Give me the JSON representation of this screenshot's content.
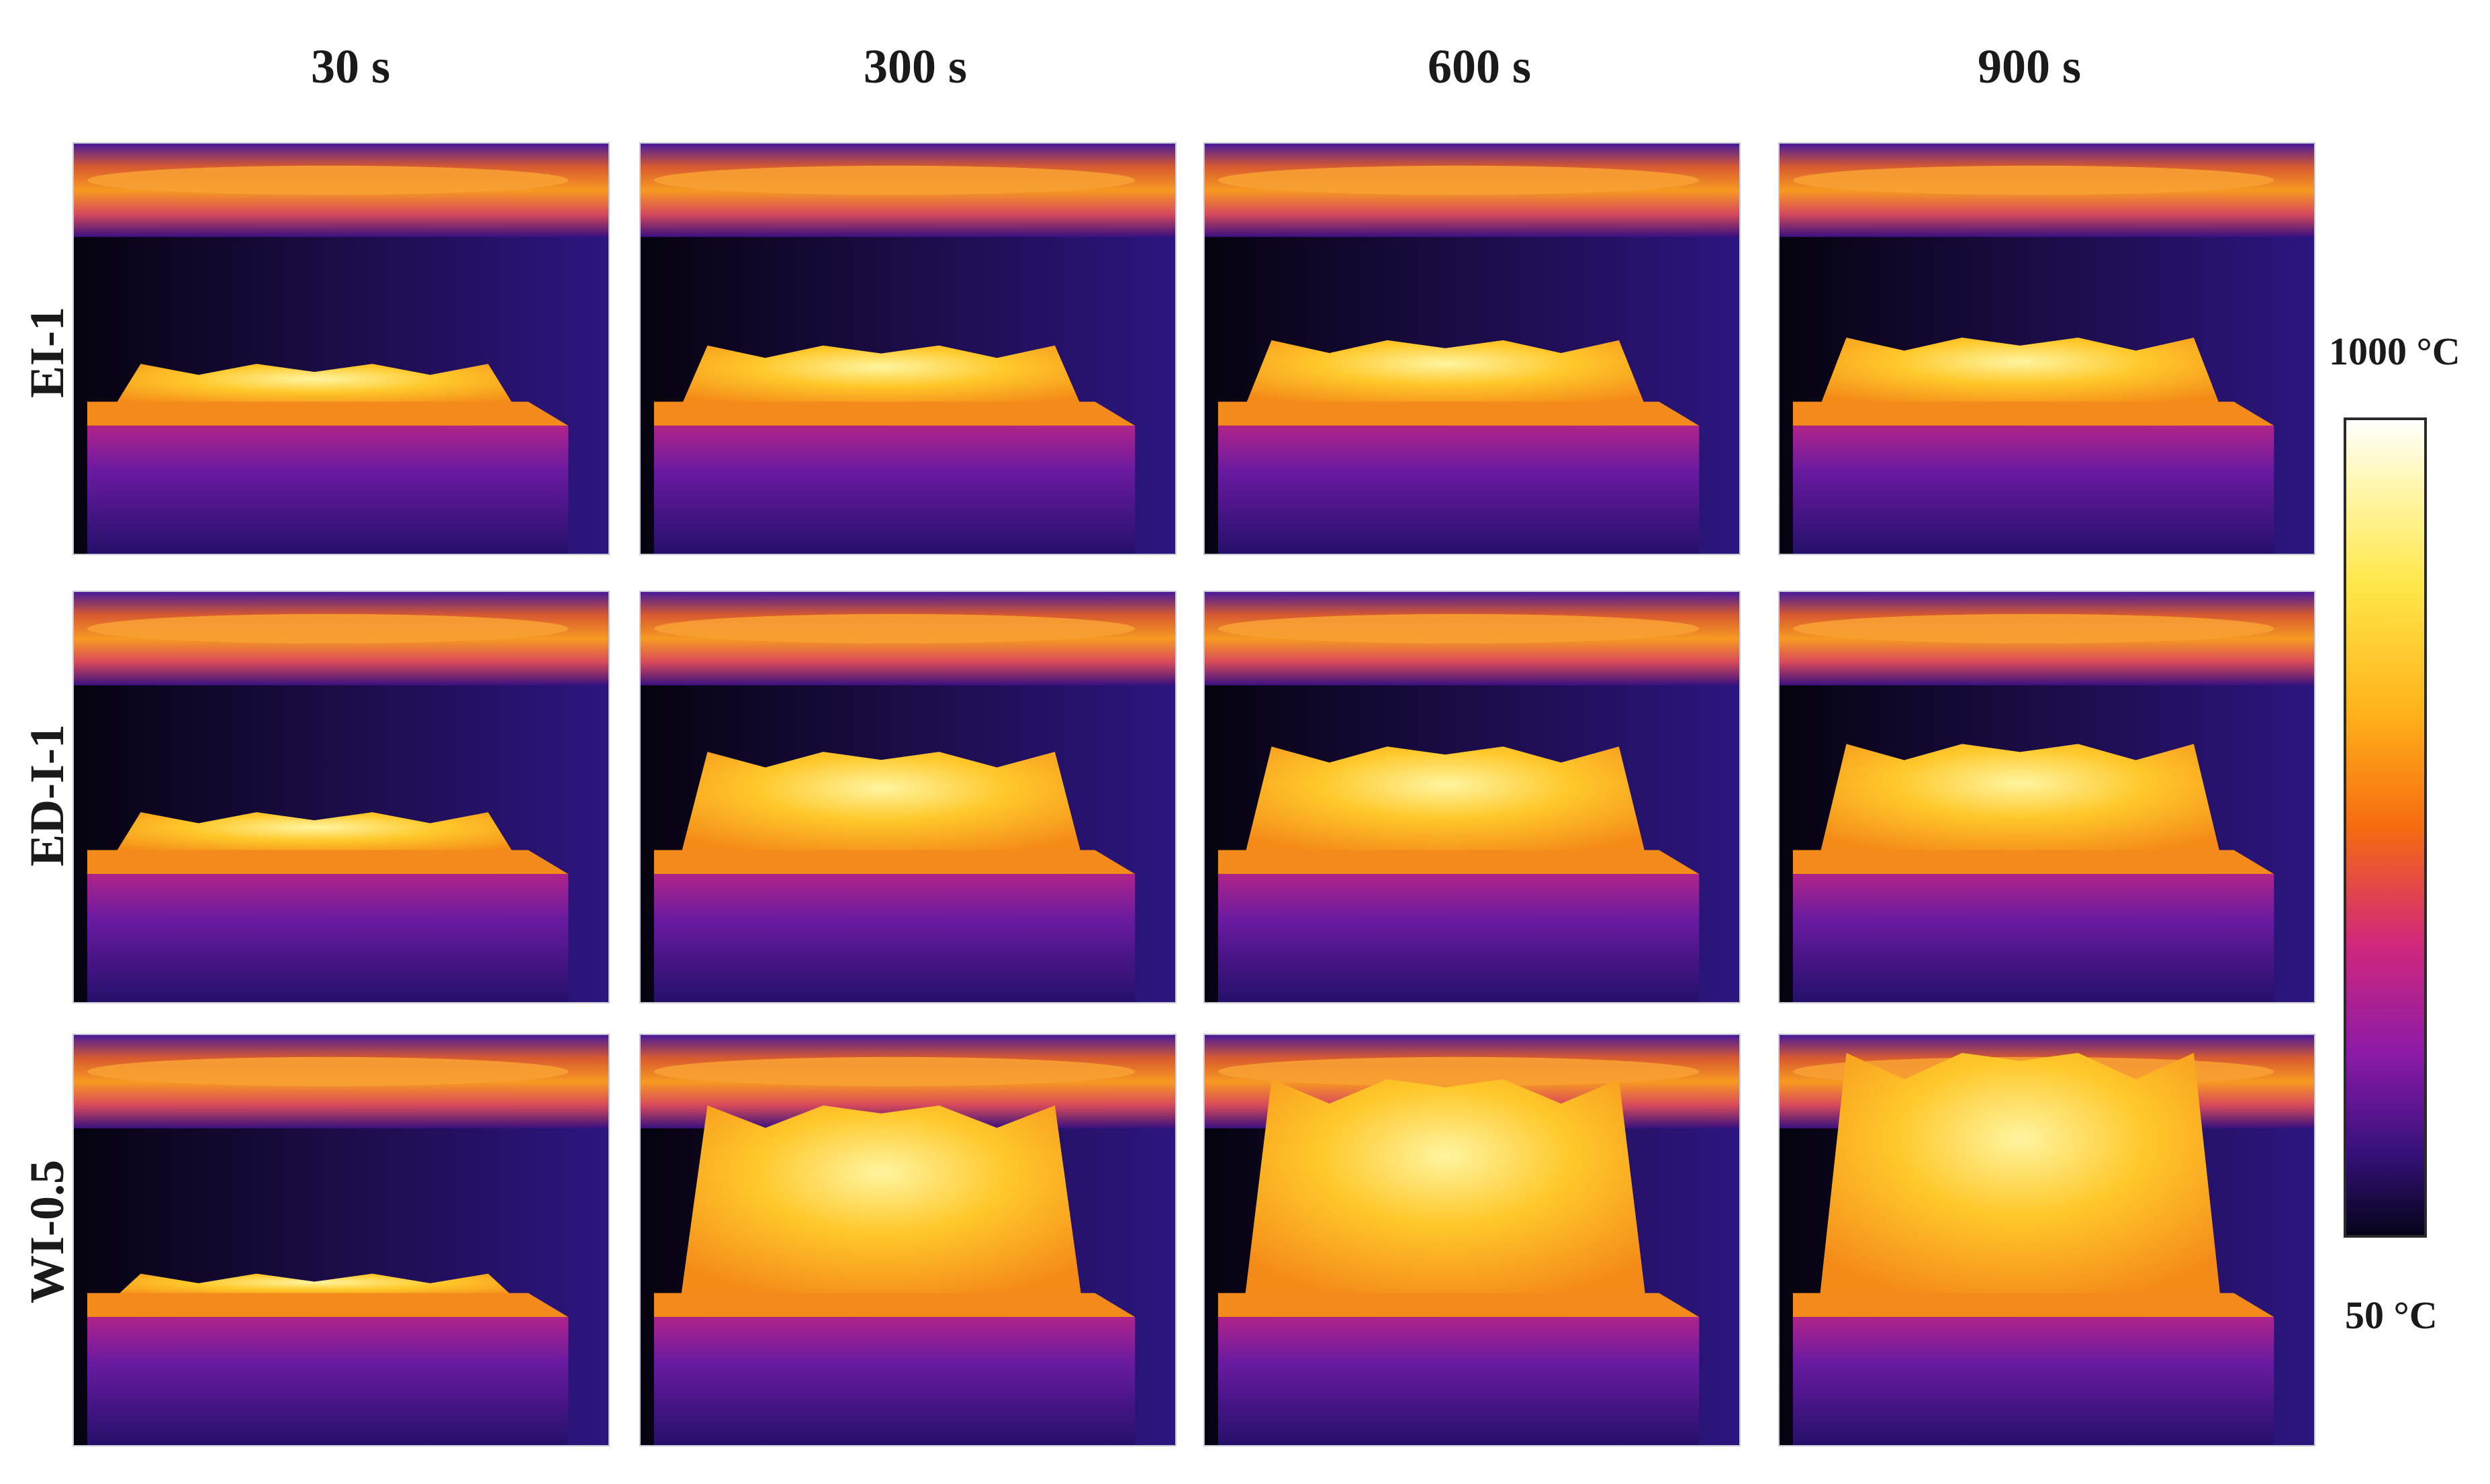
{
  "columns": {
    "c1": "30 s",
    "c2": "300 s",
    "c3": "600 s",
    "c4": "900 s"
  },
  "rows": {
    "r1": "EI-1",
    "r2": "ED-I-1",
    "r3": "WI-0.5"
  },
  "color_scale": {
    "max_label": "1000 °C",
    "min_label": "50 °C",
    "colors": [
      "#ffffff",
      "#ffe84a",
      "#ffb21a",
      "#f66b10",
      "#d2287a",
      "#8a1aa8",
      "#35117a",
      "#05031a"
    ]
  },
  "char_height": {
    "EI-1": [
      0.15,
      0.22,
      0.24,
      0.25
    ],
    "ED-I-1": [
      0.15,
      0.38,
      0.4,
      0.41
    ],
    "WI-0.5": [
      0.08,
      0.72,
      0.82,
      0.92
    ]
  }
}
